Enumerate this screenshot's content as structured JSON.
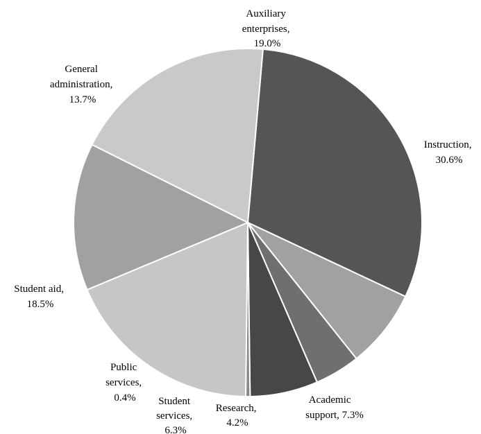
{
  "chart_data": {
    "type": "pie",
    "slices": [
      {
        "label": "Instruction,",
        "value": 30.6,
        "value_label": "30.6%",
        "color": "#555555"
      },
      {
        "label": "Academic support,",
        "value": 7.3,
        "value_label": "7.3%",
        "color": "#a1a1a1"
      },
      {
        "label": "Research,",
        "value": 4.2,
        "value_label": "4.2%",
        "color": "#6f6f6f"
      },
      {
        "label": "Student services,",
        "value": 6.3,
        "value_label": "6.3%",
        "color": "#474747"
      },
      {
        "label": "Public services,",
        "value": 0.4,
        "value_label": "0.4%",
        "color": "#888888"
      },
      {
        "label": "Student aid,",
        "value": 18.5,
        "value_label": "18.5%",
        "color": "#c6c6c6"
      },
      {
        "label": "General administration,",
        "value": 13.7,
        "value_label": "13.7%",
        "color": "#a1a1a1"
      },
      {
        "label": "Auxiliary enterprises,",
        "value": 19.0,
        "value_label": "19.0%",
        "color": "#c9c9c9"
      }
    ],
    "start": "top, clockwise from Instruction"
  }
}
